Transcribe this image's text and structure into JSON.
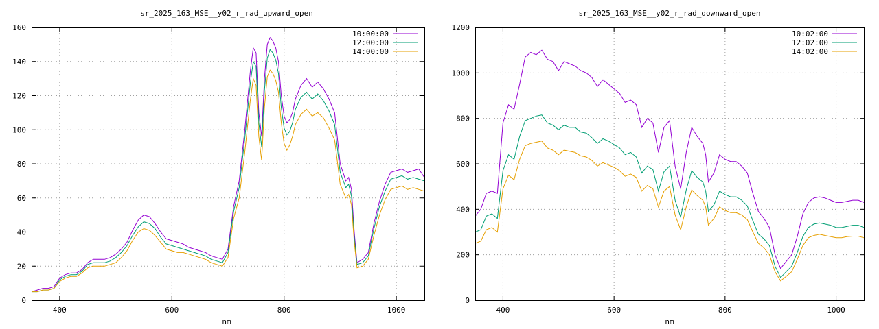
{
  "colors": {
    "series1": "#9400d3",
    "series2": "#009e73",
    "series3": "#e69f00",
    "grid": "#a0a0a0",
    "axis": "#000000"
  },
  "chart_data": [
    {
      "type": "line",
      "title": "sr_2025_163_MSE__y02_r_rad_upward_open",
      "xlabel": "nm",
      "ylabel": "",
      "xlim": [
        350,
        1050
      ],
      "ylim": [
        0,
        160
      ],
      "xticks": [
        400,
        600,
        800,
        1000
      ],
      "yticks": [
        0,
        20,
        40,
        60,
        80,
        100,
        120,
        140,
        160
      ],
      "grid": true,
      "legend": "top-right",
      "x": [
        350,
        360,
        370,
        380,
        390,
        400,
        410,
        420,
        430,
        440,
        450,
        460,
        470,
        480,
        490,
        500,
        510,
        520,
        530,
        540,
        550,
        560,
        570,
        580,
        590,
        600,
        610,
        620,
        630,
        640,
        650,
        660,
        670,
        680,
        690,
        700,
        710,
        720,
        730,
        740,
        745,
        750,
        755,
        760,
        765,
        770,
        775,
        780,
        785,
        790,
        795,
        800,
        805,
        810,
        815,
        820,
        830,
        840,
        850,
        860,
        870,
        880,
        890,
        900,
        910,
        915,
        920,
        925,
        930,
        940,
        950,
        960,
        970,
        980,
        990,
        1000,
        1010,
        1020,
        1030,
        1040,
        1050
      ],
      "series": [
        {
          "name": "10:00:00",
          "values": [
            5,
            6,
            7,
            7,
            8,
            13,
            15,
            16,
            16,
            18,
            22,
            24,
            24,
            24,
            25,
            27,
            30,
            34,
            41,
            47,
            50,
            49,
            45,
            40,
            36,
            35,
            34,
            33,
            31,
            30,
            29,
            28,
            26,
            25,
            24,
            30,
            55,
            70,
            100,
            135,
            148,
            145,
            110,
            96,
            130,
            150,
            154,
            152,
            148,
            140,
            120,
            108,
            104,
            106,
            110,
            118,
            126,
            130,
            125,
            128,
            124,
            118,
            110,
            80,
            70,
            72,
            65,
            40,
            22,
            24,
            28,
            45,
            58,
            68,
            75,
            76,
            77,
            75,
            76,
            77,
            72
          ]
        },
        {
          "name": "12:00:00",
          "values": [
            5,
            5,
            6,
            6,
            7,
            12,
            14,
            15,
            15,
            17,
            21,
            22,
            22,
            22,
            23,
            25,
            28,
            32,
            38,
            43,
            46,
            45,
            42,
            37,
            33,
            32,
            31,
            30,
            29,
            28,
            27,
            26,
            24,
            23,
            22,
            28,
            52,
            66,
            95,
            128,
            140,
            137,
            104,
            90,
            123,
            142,
            147,
            145,
            141,
            133,
            113,
            101,
            97,
            99,
            104,
            112,
            119,
            122,
            118,
            121,
            117,
            111,
            103,
            75,
            66,
            68,
            61,
            37,
            21,
            22,
            26,
            42,
            55,
            64,
            71,
            72,
            73,
            71,
            72,
            71,
            70
          ]
        },
        {
          "name": "14:00:00",
          "values": [
            5,
            5,
            6,
            6,
            7,
            11,
            13,
            14,
            14,
            16,
            19,
            20,
            20,
            20,
            21,
            22,
            25,
            29,
            35,
            40,
            42,
            41,
            38,
            34,
            30,
            29,
            28,
            28,
            27,
            26,
            25,
            24,
            22,
            21,
            20,
            25,
            48,
            60,
            87,
            118,
            130,
            126,
            96,
            82,
            113,
            131,
            135,
            133,
            129,
            122,
            104,
            92,
            88,
            91,
            96,
            103,
            109,
            112,
            108,
            110,
            107,
            101,
            94,
            68,
            60,
            62,
            56,
            34,
            19,
            20,
            24,
            38,
            50,
            59,
            65,
            66,
            67,
            65,
            66,
            65,
            64
          ]
        }
      ]
    },
    {
      "type": "line",
      "title": "sr_2025_163_MSE__y02_r_rad_downward_open",
      "xlabel": "nm",
      "ylabel": "",
      "xlim": [
        350,
        1050
      ],
      "ylim": [
        0,
        1200
      ],
      "xticks": [
        400,
        600,
        800,
        1000
      ],
      "yticks": [
        0,
        200,
        400,
        600,
        800,
        1000,
        1200
      ],
      "grid": true,
      "legend": "top-right",
      "x": [
        350,
        360,
        370,
        380,
        390,
        400,
        410,
        420,
        430,
        440,
        450,
        460,
        470,
        480,
        490,
        500,
        510,
        520,
        530,
        540,
        550,
        560,
        570,
        580,
        590,
        600,
        610,
        620,
        630,
        640,
        650,
        660,
        670,
        680,
        690,
        700,
        710,
        720,
        730,
        740,
        750,
        760,
        765,
        770,
        780,
        790,
        800,
        810,
        820,
        830,
        840,
        850,
        860,
        870,
        880,
        890,
        900,
        910,
        920,
        930,
        940,
        950,
        960,
        970,
        980,
        990,
        1000,
        1010,
        1020,
        1030,
        1040,
        1050
      ],
      "series": [
        {
          "name": "10:02:00",
          "values": [
            370,
            400,
            470,
            480,
            470,
            780,
            860,
            840,
            950,
            1070,
            1090,
            1080,
            1100,
            1060,
            1050,
            1010,
            1050,
            1040,
            1030,
            1010,
            1000,
            980,
            940,
            970,
            950,
            930,
            910,
            870,
            880,
            860,
            760,
            800,
            780,
            650,
            760,
            790,
            590,
            490,
            650,
            760,
            720,
            690,
            640,
            520,
            560,
            640,
            620,
            610,
            610,
            590,
            560,
            470,
            390,
            360,
            320,
            200,
            140,
            170,
            200,
            280,
            380,
            430,
            450,
            455,
            450,
            440,
            430,
            430,
            435,
            440,
            440,
            430
          ]
        },
        {
          "name": "12:02:00",
          "values": [
            300,
            310,
            370,
            380,
            360,
            570,
            640,
            620,
            720,
            790,
            800,
            810,
            815,
            780,
            770,
            750,
            770,
            760,
            760,
            740,
            735,
            715,
            690,
            710,
            700,
            685,
            670,
            640,
            650,
            630,
            560,
            590,
            575,
            480,
            565,
            590,
            440,
            365,
            485,
            570,
            540,
            520,
            480,
            390,
            420,
            480,
            465,
            455,
            455,
            440,
            415,
            350,
            290,
            270,
            240,
            150,
            100,
            125,
            150,
            210,
            280,
            320,
            335,
            340,
            335,
            330,
            320,
            320,
            325,
            330,
            330,
            320
          ]
        },
        {
          "name": "14:02:00",
          "values": [
            250,
            260,
            310,
            320,
            300,
            490,
            550,
            530,
            620,
            680,
            690,
            695,
            700,
            670,
            660,
            640,
            660,
            655,
            650,
            635,
            630,
            615,
            590,
            605,
            595,
            585,
            570,
            545,
            555,
            540,
            480,
            505,
            490,
            410,
            480,
            500,
            375,
            310,
            410,
            485,
            460,
            440,
            410,
            330,
            360,
            410,
            395,
            385,
            385,
            375,
            355,
            300,
            250,
            230,
            200,
            125,
            85,
            105,
            125,
            180,
            240,
            275,
            285,
            290,
            285,
            280,
            275,
            275,
            280,
            282,
            282,
            275
          ]
        }
      ]
    }
  ]
}
